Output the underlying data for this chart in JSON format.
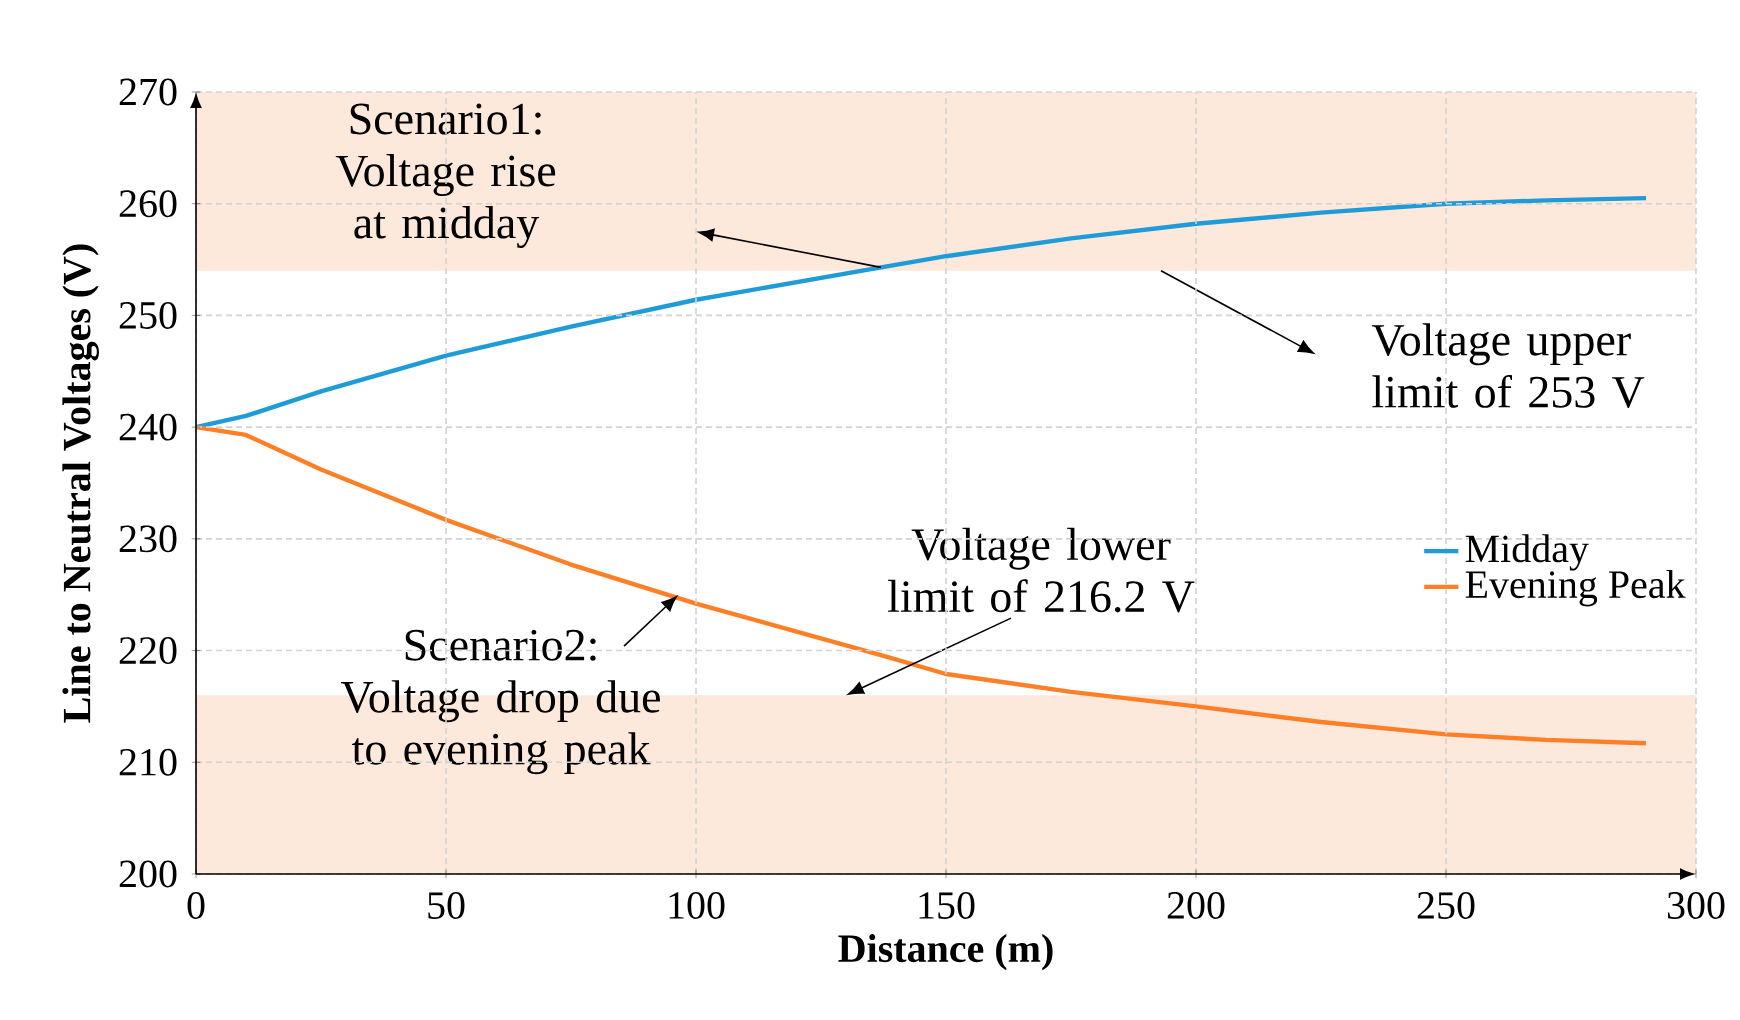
{
  "chart_data": {
    "type": "line",
    "xlabel": "Distance (m)",
    "ylabel": "Line to Neutral Voltages (V)",
    "x": [
      0,
      10,
      25,
      50,
      75,
      100,
      137,
      150,
      175,
      200,
      225,
      250,
      270,
      290
    ],
    "series": [
      {
        "name": "Midday",
        "color": "#1f9bd7",
        "values": [
          240,
          241.0,
          243.2,
          246.4,
          249.0,
          251.4,
          254.3,
          255.3,
          256.9,
          258.2,
          259.2,
          260.0,
          260.3,
          260.5
        ]
      },
      {
        "name": "Evening Peak",
        "color": "#ff7f27",
        "values": [
          240,
          239.3,
          236.2,
          231.7,
          227.7,
          224.2,
          219.6,
          217.9,
          216.3,
          215.0,
          213.6,
          212.5,
          212.0,
          211.7
        ]
      }
    ],
    "xlim": [
      0,
      300
    ],
    "ylim": [
      200,
      270
    ],
    "xticks": [
      0,
      50,
      100,
      150,
      200,
      250,
      300
    ],
    "yticks": [
      200,
      210,
      220,
      230,
      240,
      250,
      260,
      270
    ],
    "bands": [
      {
        "axis": "y",
        "from": 254,
        "to": 270,
        "color": "#fde9db"
      },
      {
        "axis": "y",
        "from": 200,
        "to": 216,
        "color": "#fde9db"
      }
    ],
    "annotations": [
      "Scenario1: Voltage rise at midday",
      "Voltage upper limit of 253 V",
      {
        "text": "Scenario2: Voltage drop due to evening peak",
        "x": 96.5,
        "y": 225
      },
      {
        "text": "Voltage lower limit of 216.2 V",
        "x": 130,
        "y": 216
      }
    ],
    "grid": true,
    "legend": "right",
    "line_style": "solid",
    "marker": "none"
  }
}
